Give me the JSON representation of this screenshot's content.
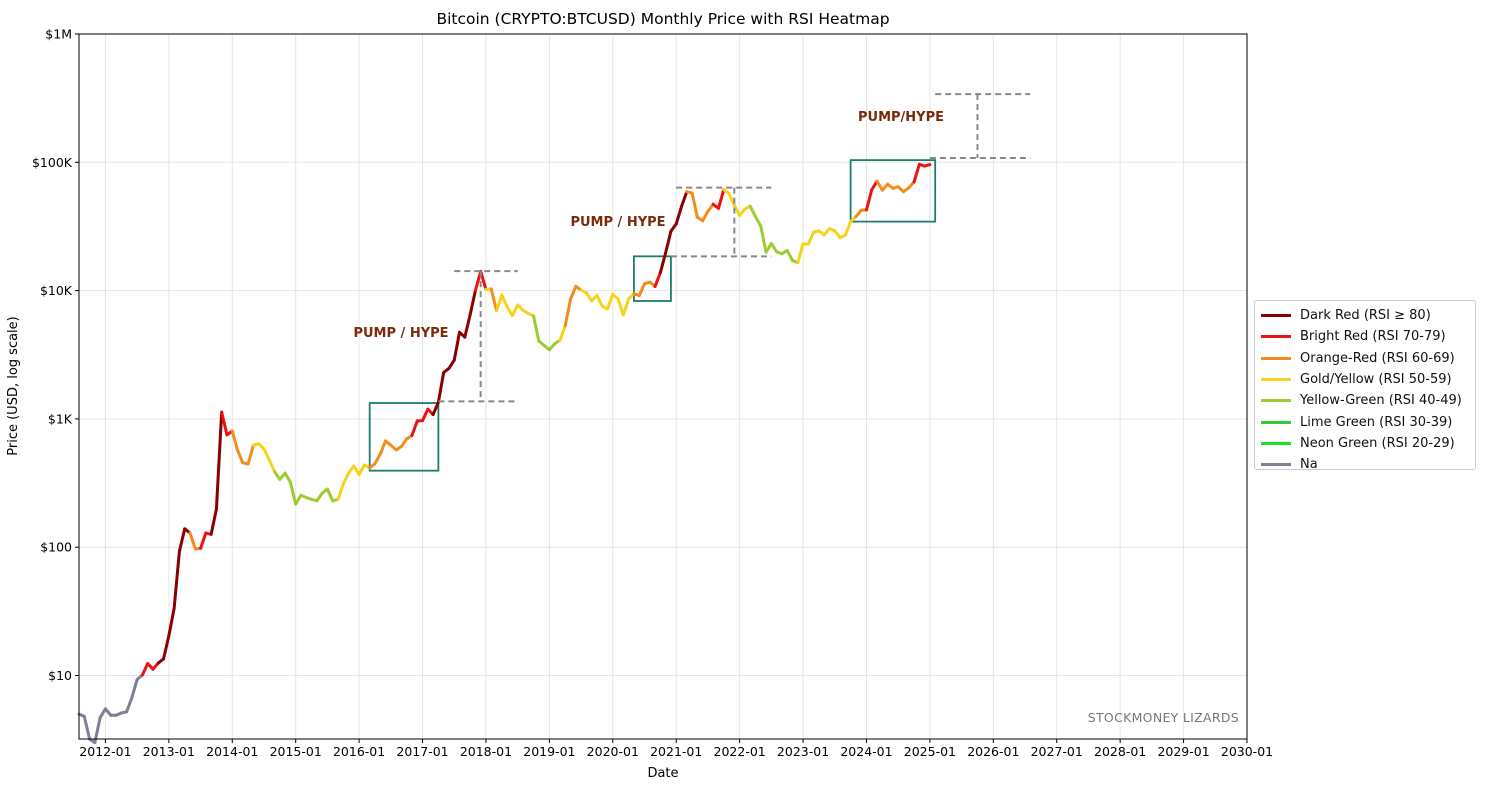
{
  "chart_data": {
    "type": "line",
    "title": "Bitcoin (CRYPTO:BTCUSD) Monthly Price with RSI Heatmap",
    "xlabel": "Date",
    "ylabel": "Price (USD, log scale)",
    "y_scale": "log",
    "ylim": [
      3.2,
      1000000
    ],
    "xlim": [
      "2011-08",
      "2030-01"
    ],
    "grid": true,
    "legend_position": "outside-right",
    "x_ticks": [
      "2012-01",
      "2013-01",
      "2014-01",
      "2015-01",
      "2016-01",
      "2017-01",
      "2018-01",
      "2019-01",
      "2020-01",
      "2021-01",
      "2022-01",
      "2023-01",
      "2024-01",
      "2025-01",
      "2026-01",
      "2027-01",
      "2028-01",
      "2029-01",
      "2030-01"
    ],
    "y_ticks": [
      {
        "value": 10,
        "label": "$10"
      },
      {
        "value": 100,
        "label": "$100"
      },
      {
        "value": 1000,
        "label": "$1K"
      },
      {
        "value": 10000,
        "label": "$10K"
      },
      {
        "value": 100000,
        "label": "$100K"
      },
      {
        "value": 1000000,
        "label": "$1M"
      }
    ],
    "rsi_categories": [
      {
        "key": "dr",
        "label": "Dark Red (RSI ≥ 80)",
        "color": "#8b0000"
      },
      {
        "key": "br",
        "label": "Bright Red (RSI 70-79)",
        "color": "#ee1111"
      },
      {
        "key": "or",
        "label": "Orange-Red (RSI 60-69)",
        "color": "#f28c1c"
      },
      {
        "key": "gy",
        "label": "Gold/Yellow (RSI 50-59)",
        "color": "#f7d21a"
      },
      {
        "key": "yg",
        "label": "Yellow-Green (RSI 40-49)",
        "color": "#9acd32"
      },
      {
        "key": "lg",
        "label": "Lime Green (RSI 30-39)",
        "color": "#32cd32"
      },
      {
        "key": "ng",
        "label": "Neon Green (RSI 20-29)",
        "color": "#19e619"
      },
      {
        "key": "na",
        "label": "Na",
        "color": "#7f7f96"
      }
    ],
    "series": [
      [
        "2011-08",
        5,
        "na"
      ],
      [
        "2011-09",
        4.8,
        "na"
      ],
      [
        "2011-10",
        3.2,
        "na"
      ],
      [
        "2011-11",
        3,
        "na"
      ],
      [
        "2011-12",
        4.7,
        "na"
      ],
      [
        "2012-01",
        5.5,
        "na"
      ],
      [
        "2012-02",
        4.9,
        "na"
      ],
      [
        "2012-03",
        4.9,
        "na"
      ],
      [
        "2012-04",
        5.1,
        "na"
      ],
      [
        "2012-05",
        5.2,
        "na"
      ],
      [
        "2012-06",
        6.7,
        "na"
      ],
      [
        "2012-07",
        9.3,
        "na"
      ],
      [
        "2012-08",
        10.1,
        "na"
      ],
      [
        "2012-09",
        12.4,
        "br"
      ],
      [
        "2012-10",
        11.2,
        "br"
      ],
      [
        "2012-11",
        12.5,
        "br"
      ],
      [
        "2012-12",
        13.5,
        "dr"
      ],
      [
        "2013-01",
        20.4,
        "dr"
      ],
      [
        "2013-02",
        33.4,
        "dr"
      ],
      [
        "2013-03",
        93,
        "dr"
      ],
      [
        "2013-04",
        139,
        "dr"
      ],
      [
        "2013-05",
        129,
        "dr"
      ],
      [
        "2013-06",
        97,
        "or"
      ],
      [
        "2013-07",
        98,
        "or"
      ],
      [
        "2013-08",
        129,
        "br"
      ],
      [
        "2013-09",
        126,
        "br"
      ],
      [
        "2013-10",
        198,
        "dr"
      ],
      [
        "2013-11",
        1130,
        "dr"
      ],
      [
        "2013-12",
        750,
        "br"
      ],
      [
        "2014-01",
        805,
        "br"
      ],
      [
        "2014-02",
        570,
        "or"
      ],
      [
        "2014-03",
        455,
        "or"
      ],
      [
        "2014-04",
        445,
        "or"
      ],
      [
        "2014-05",
        625,
        "or"
      ],
      [
        "2014-06",
        640,
        "gy"
      ],
      [
        "2014-07",
        585,
        "gy"
      ],
      [
        "2014-08",
        480,
        "gy"
      ],
      [
        "2014-09",
        388,
        "gy"
      ],
      [
        "2014-10",
        338,
        "yg"
      ],
      [
        "2014-11",
        378,
        "yg"
      ],
      [
        "2014-12",
        320,
        "yg"
      ],
      [
        "2015-01",
        217,
        "yg"
      ],
      [
        "2015-02",
        254,
        "yg"
      ],
      [
        "2015-03",
        244,
        "yg"
      ],
      [
        "2015-04",
        236,
        "yg"
      ],
      [
        "2015-05",
        230,
        "yg"
      ],
      [
        "2015-06",
        263,
        "yg"
      ],
      [
        "2015-07",
        284,
        "yg"
      ],
      [
        "2015-08",
        230,
        "yg"
      ],
      [
        "2015-09",
        236,
        "yg"
      ],
      [
        "2015-10",
        311,
        "gy"
      ],
      [
        "2015-11",
        378,
        "gy"
      ],
      [
        "2015-12",
        430,
        "gy"
      ],
      [
        "2016-01",
        368,
        "gy"
      ],
      [
        "2016-02",
        437,
        "gy"
      ],
      [
        "2016-03",
        416,
        "gy"
      ],
      [
        "2016-04",
        448,
        "or"
      ],
      [
        "2016-05",
        531,
        "or"
      ],
      [
        "2016-06",
        673,
        "or"
      ],
      [
        "2016-07",
        624,
        "or"
      ],
      [
        "2016-08",
        573,
        "or"
      ],
      [
        "2016-09",
        609,
        "or"
      ],
      [
        "2016-10",
        698,
        "or"
      ],
      [
        "2016-11",
        742,
        "or"
      ],
      [
        "2016-12",
        963,
        "br"
      ],
      [
        "2017-01",
        970,
        "br"
      ],
      [
        "2017-02",
        1190,
        "br"
      ],
      [
        "2017-03",
        1080,
        "br"
      ],
      [
        "2017-04",
        1350,
        "dr"
      ],
      [
        "2017-05",
        2300,
        "dr"
      ],
      [
        "2017-06",
        2480,
        "dr"
      ],
      [
        "2017-07",
        2870,
        "dr"
      ],
      [
        "2017-08",
        4730,
        "dr"
      ],
      [
        "2017-09",
        4340,
        "dr"
      ],
      [
        "2017-10",
        6450,
        "dr"
      ],
      [
        "2017-11",
        10000,
        "dr"
      ],
      [
        "2017-12",
        14100,
        "br"
      ],
      [
        "2018-01",
        10200,
        "br"
      ],
      [
        "2018-02",
        10300,
        "gy"
      ],
      [
        "2018-03",
        6970,
        "or"
      ],
      [
        "2018-04",
        9240,
        "gy"
      ],
      [
        "2018-05",
        7490,
        "gy"
      ],
      [
        "2018-06",
        6390,
        "gy"
      ],
      [
        "2018-07",
        7730,
        "gy"
      ],
      [
        "2018-08",
        7030,
        "gy"
      ],
      [
        "2018-09",
        6630,
        "gy"
      ],
      [
        "2018-10",
        6370,
        "gy"
      ],
      [
        "2018-11",
        4040,
        "yg"
      ],
      [
        "2018-12",
        3740,
        "yg"
      ],
      [
        "2019-01",
        3460,
        "yg"
      ],
      [
        "2019-02",
        3850,
        "yg"
      ],
      [
        "2019-03",
        4100,
        "yg"
      ],
      [
        "2019-04",
        5320,
        "gy"
      ],
      [
        "2019-05",
        8570,
        "or"
      ],
      [
        "2019-06",
        10800,
        "or"
      ],
      [
        "2019-07",
        10100,
        "or"
      ],
      [
        "2019-08",
        9600,
        "gy"
      ],
      [
        "2019-09",
        8300,
        "gy"
      ],
      [
        "2019-10",
        9200,
        "gy"
      ],
      [
        "2019-11",
        7560,
        "gy"
      ],
      [
        "2019-12",
        7200,
        "gy"
      ],
      [
        "2020-01",
        9350,
        "gy"
      ],
      [
        "2020-02",
        8600,
        "gy"
      ],
      [
        "2020-03",
        6440,
        "gy"
      ],
      [
        "2020-04",
        8630,
        "gy"
      ],
      [
        "2020-05",
        9450,
        "gy"
      ],
      [
        "2020-06",
        9140,
        "or"
      ],
      [
        "2020-07",
        11300,
        "or"
      ],
      [
        "2020-08",
        11650,
        "or"
      ],
      [
        "2020-09",
        10780,
        "or"
      ],
      [
        "2020-10",
        13800,
        "br"
      ],
      [
        "2020-11",
        19700,
        "dr"
      ],
      [
        "2020-12",
        29000,
        "dr"
      ],
      [
        "2021-01",
        33100,
        "dr"
      ],
      [
        "2021-02",
        45200,
        "dr"
      ],
      [
        "2021-03",
        58900,
        "dr"
      ],
      [
        "2021-04",
        57700,
        "or"
      ],
      [
        "2021-05",
        37300,
        "or"
      ],
      [
        "2021-06",
        35000,
        "or"
      ],
      [
        "2021-07",
        41500,
        "or"
      ],
      [
        "2021-08",
        47100,
        "or"
      ],
      [
        "2021-09",
        43800,
        "br"
      ],
      [
        "2021-10",
        61300,
        "br"
      ],
      [
        "2021-11",
        57000,
        "gy"
      ],
      [
        "2021-12",
        46300,
        "gy"
      ],
      [
        "2022-01",
        38500,
        "gy"
      ],
      [
        "2022-02",
        43200,
        "gy"
      ],
      [
        "2022-03",
        45500,
        "gy"
      ],
      [
        "2022-04",
        37700,
        "yg"
      ],
      [
        "2022-05",
        31800,
        "yg"
      ],
      [
        "2022-06",
        19900,
        "yg"
      ],
      [
        "2022-07",
        23300,
        "yg"
      ],
      [
        "2022-08",
        20050,
        "yg"
      ],
      [
        "2022-09",
        19400,
        "yg"
      ],
      [
        "2022-10",
        20500,
        "yg"
      ],
      [
        "2022-11",
        17200,
        "yg"
      ],
      [
        "2022-12",
        16500,
        "yg"
      ],
      [
        "2023-01",
        23100,
        "gy"
      ],
      [
        "2023-02",
        23100,
        "gy"
      ],
      [
        "2023-03",
        28500,
        "gy"
      ],
      [
        "2023-04",
        29200,
        "gy"
      ],
      [
        "2023-05",
        27200,
        "gy"
      ],
      [
        "2023-06",
        30500,
        "gy"
      ],
      [
        "2023-07",
        29200,
        "gy"
      ],
      [
        "2023-08",
        25900,
        "gy"
      ],
      [
        "2023-09",
        27000,
        "gy"
      ],
      [
        "2023-10",
        34500,
        "gy"
      ],
      [
        "2023-11",
        37700,
        "gy"
      ],
      [
        "2023-12",
        42300,
        "or"
      ],
      [
        "2024-01",
        42600,
        "or"
      ],
      [
        "2024-02",
        61100,
        "br"
      ],
      [
        "2024-03",
        71300,
        "br"
      ],
      [
        "2024-04",
        60700,
        "or"
      ],
      [
        "2024-05",
        67500,
        "or"
      ],
      [
        "2024-06",
        62700,
        "or"
      ],
      [
        "2024-07",
        64600,
        "or"
      ],
      [
        "2024-08",
        59000,
        "or"
      ],
      [
        "2024-09",
        63300,
        "or"
      ],
      [
        "2024-10",
        70200,
        "or"
      ],
      [
        "2024-11",
        96400,
        "br"
      ],
      [
        "2024-12",
        93400,
        "br"
      ],
      [
        "2025-01",
        96000,
        "br"
      ]
    ],
    "annotations": [
      {
        "text": "PUMP / HYPE"
      },
      {
        "text": "PUMP / HYPE"
      },
      {
        "text": "PUMP/HYPE"
      }
    ],
    "watermark": "STOCKMONEY LIZARDS"
  }
}
